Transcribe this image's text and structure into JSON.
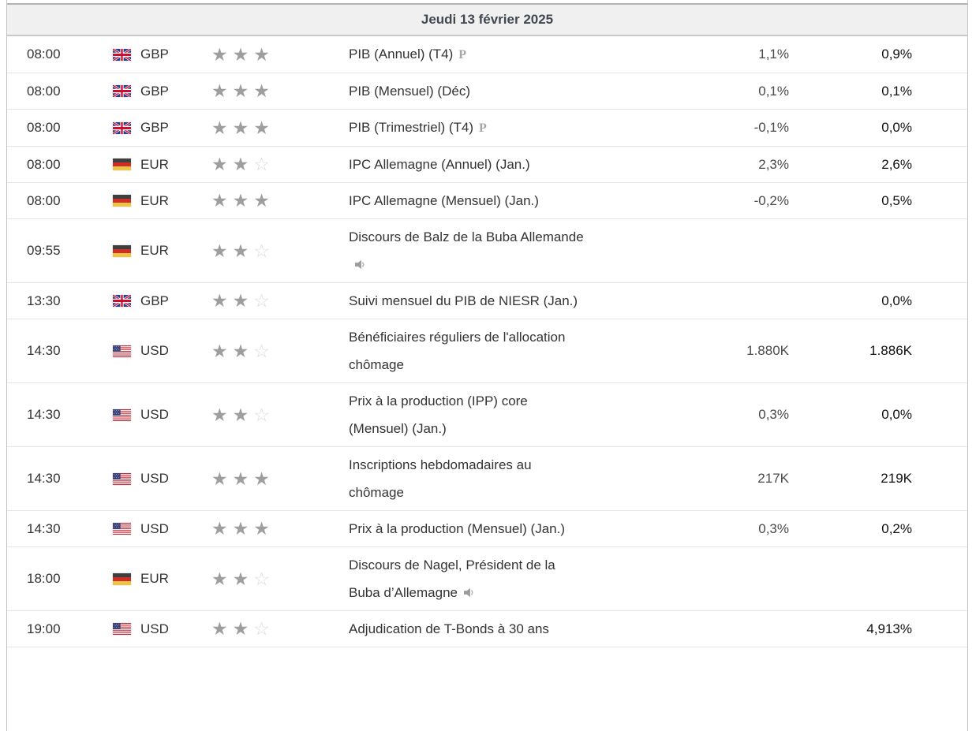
{
  "header": {
    "date_label": "Jeudi 13 février 2025"
  },
  "icons": {
    "star_filled_glyph": "★",
    "star_empty_glyph": "☆",
    "preliminary_label": "P",
    "speaker_icon": "speaker-icon",
    "gb_flag": "gb-flag-icon",
    "de_flag": "de-flag-icon",
    "us_flag": "us-flag-icon"
  },
  "colors": {
    "header_bg": "#f0f0f0",
    "header_text": "#414851",
    "row_border": "#e6e6e6",
    "star_filled": "#9e9e9e",
    "star_empty": "#d9d9d9",
    "forecast_text": "#4a4a4a",
    "previous_text": "#111111"
  },
  "table": {
    "max_stars": 3,
    "rows": [
      {
        "time": "08:00",
        "currency": "GBP",
        "flag": "gb",
        "stars": 3,
        "event": "PIB (Annuel) (T4)",
        "preliminary": true,
        "speech": false,
        "forecast": "1,1%",
        "previous": "0,9%"
      },
      {
        "time": "08:00",
        "currency": "GBP",
        "flag": "gb",
        "stars": 3,
        "event": "PIB (Mensuel) (Déc)",
        "preliminary": false,
        "speech": false,
        "forecast": "0,1%",
        "previous": "0,1%"
      },
      {
        "time": "08:00",
        "currency": "GBP",
        "flag": "gb",
        "stars": 3,
        "event": "PIB (Trimestriel) (T4)",
        "preliminary": true,
        "speech": false,
        "forecast": "-0,1%",
        "previous": "0,0%"
      },
      {
        "time": "08:00",
        "currency": "EUR",
        "flag": "de",
        "stars": 2,
        "event": "IPC Allemagne (Annuel) (Jan.)",
        "preliminary": false,
        "speech": false,
        "forecast": "2,3%",
        "previous": "2,6%"
      },
      {
        "time": "08:00",
        "currency": "EUR",
        "flag": "de",
        "stars": 3,
        "event": "IPC Allemagne (Mensuel) (Jan.)",
        "preliminary": false,
        "speech": false,
        "forecast": "-0,2%",
        "previous": "0,5%"
      },
      {
        "time": "09:55",
        "currency": "EUR",
        "flag": "de",
        "stars": 2,
        "event": "Discours de Balz de la Buba Allemande",
        "preliminary": false,
        "speech": true,
        "forecast": "",
        "previous": ""
      },
      {
        "time": "13:30",
        "currency": "GBP",
        "flag": "gb",
        "stars": 2,
        "event": "Suivi mensuel du PIB de NIESR (Jan.)",
        "preliminary": false,
        "speech": false,
        "forecast": "",
        "previous": "0,0%"
      },
      {
        "time": "14:30",
        "currency": "USD",
        "flag": "us",
        "stars": 2,
        "event": "Bénéficiaires réguliers de l'allocation chômage",
        "preliminary": false,
        "speech": false,
        "forecast": "1.880K",
        "previous": "1.886K"
      },
      {
        "time": "14:30",
        "currency": "USD",
        "flag": "us",
        "stars": 2,
        "event": "Prix à la production (IPP) core (Mensuel) (Jan.)",
        "preliminary": false,
        "speech": false,
        "forecast": "0,3%",
        "previous": "0,0%"
      },
      {
        "time": "14:30",
        "currency": "USD",
        "flag": "us",
        "stars": 3,
        "event": "Inscriptions hebdomadaires au chômage",
        "preliminary": false,
        "speech": false,
        "forecast": "217K",
        "previous": "219K"
      },
      {
        "time": "14:30",
        "currency": "USD",
        "flag": "us",
        "stars": 3,
        "event": "Prix à la production (Mensuel) (Jan.)",
        "preliminary": false,
        "speech": false,
        "forecast": "0,3%",
        "previous": "0,2%"
      },
      {
        "time": "18:00",
        "currency": "EUR",
        "flag": "de",
        "stars": 2,
        "event": "Discours de Nagel, Président de la Buba d’Allemagne",
        "preliminary": false,
        "speech": true,
        "forecast": "",
        "previous": ""
      },
      {
        "time": "19:00",
        "currency": "USD",
        "flag": "us",
        "stars": 2,
        "event": "Adjudication de T-Bonds à 30 ans",
        "preliminary": false,
        "speech": false,
        "forecast": "",
        "previous": "4,913%"
      }
    ]
  }
}
